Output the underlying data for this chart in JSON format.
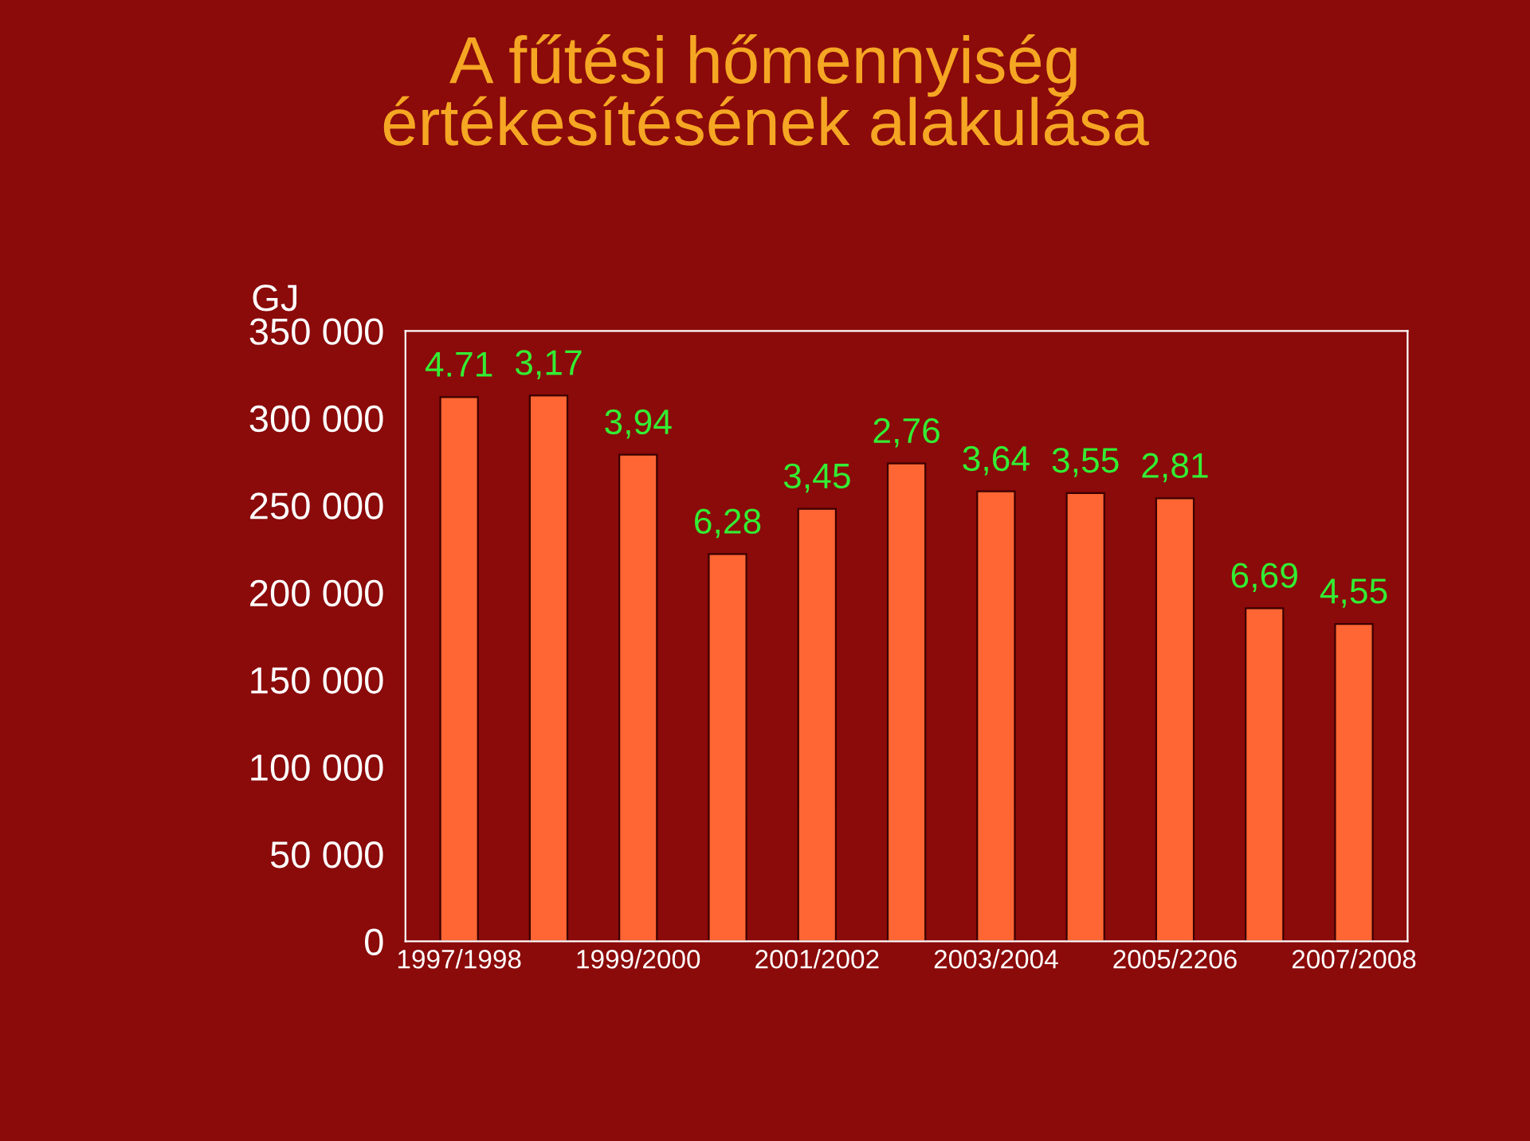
{
  "chart_data": {
    "type": "bar",
    "title": "A fűtési hőmennyiség\nértékesítésének alakulása",
    "ylabel": "GJ",
    "categories": [
      "1997/1998",
      null,
      "1999/2000",
      null,
      "2001/2002",
      null,
      "2003/2004",
      null,
      "2005/2206",
      null,
      "2007/2008"
    ],
    "values": [
      312000,
      313000,
      279000,
      222000,
      248000,
      274000,
      258000,
      257000,
      254000,
      191000,
      182000
    ],
    "annotations": [
      "4.71",
      "3,17",
      "3,94",
      "6,28",
      "3,45",
      "2,76",
      "3,64",
      "3,55",
      "2,81",
      "6,69",
      "4,55"
    ],
    "color": "#ff6633",
    "ylim": [
      0,
      350000
    ],
    "yticks": [
      {
        "value": 0,
        "label": "0"
      },
      {
        "value": 50000,
        "label": "50 000"
      },
      {
        "value": 100000,
        "label": "100 000"
      },
      {
        "value": 150000,
        "label": "150 000"
      },
      {
        "value": 200000,
        "label": "200 000"
      },
      {
        "value": 250000,
        "label": "250 000"
      },
      {
        "value": 300000,
        "label": "300 000"
      },
      {
        "value": 350000,
        "label": "350 000"
      }
    ],
    "grid": false,
    "legend": false
  }
}
